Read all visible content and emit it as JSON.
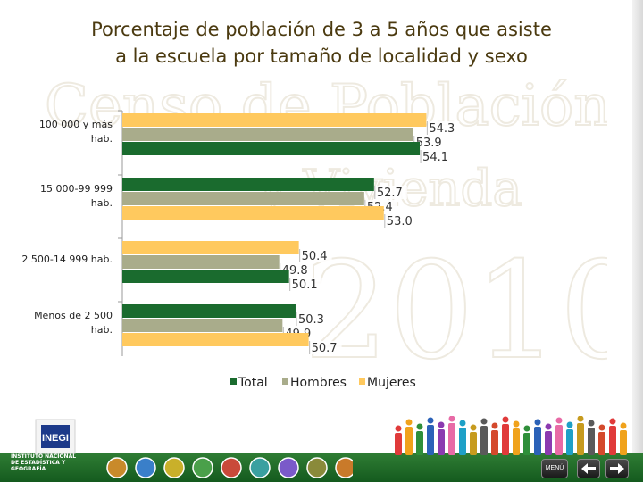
{
  "title_line1": "Porcentaje de población de 3 a 5 años que asiste",
  "title_line2": "a la escuela por tamaño de localidad y sexo",
  "watermark": {
    "line1": "Censo de Población",
    "line2": "y Vivienda",
    "line3": "2010"
  },
  "logo": {
    "acronym": "INEGI",
    "line1": "INSTITUTO NACIONAL",
    "line2": "DE ESTADÍSTICA Y GEOGRAFÍA"
  },
  "nav": {
    "menu_label": "MENÚ"
  },
  "colors": {
    "total": "#1a6b2e",
    "hombres": "#a9ac8b",
    "mujeres": "#ffc95e",
    "title": "#4b3a10",
    "band": "#1f6e27"
  },
  "chart_data": {
    "type": "bar",
    "orientation": "horizontal",
    "categories": [
      [
        "100 000 y más",
        "hab."
      ],
      [
        "15 000-99 999",
        "hab."
      ],
      [
        "2 500-14 999 hab."
      ],
      [
        "Menos de 2 500",
        "hab."
      ]
    ],
    "series": [
      {
        "name": "Mujeres",
        "values": [
          54.3,
          53.0,
          50.4,
          50.7
        ]
      },
      {
        "name": "Hombres",
        "values": [
          53.9,
          52.4,
          49.8,
          49.9
        ]
      },
      {
        "name": "Total",
        "values": [
          54.1,
          52.7,
          50.1,
          50.3
        ]
      }
    ],
    "bar_order_per_group": [
      [
        "Mujeres",
        "Hombres",
        "Total"
      ],
      [
        "Total",
        "Hombres",
        "Mujeres"
      ],
      [
        "Mujeres",
        "Hombres",
        "Total"
      ],
      [
        "Total",
        "Hombres",
        "Mujeres"
      ]
    ],
    "data_labels": [
      [
        "54.3",
        "53.9",
        "54.1"
      ],
      [
        "53.0",
        "52.4",
        "52.7"
      ],
      [
        "50.4",
        "49.8",
        "50.1"
      ],
      [
        "50.7",
        "49.9",
        "50.3"
      ]
    ],
    "legend": [
      "Total",
      "Hombres",
      "Mujeres"
    ],
    "legend_position": "bottom",
    "xlim": [
      45,
      56
    ],
    "grid": false
  }
}
